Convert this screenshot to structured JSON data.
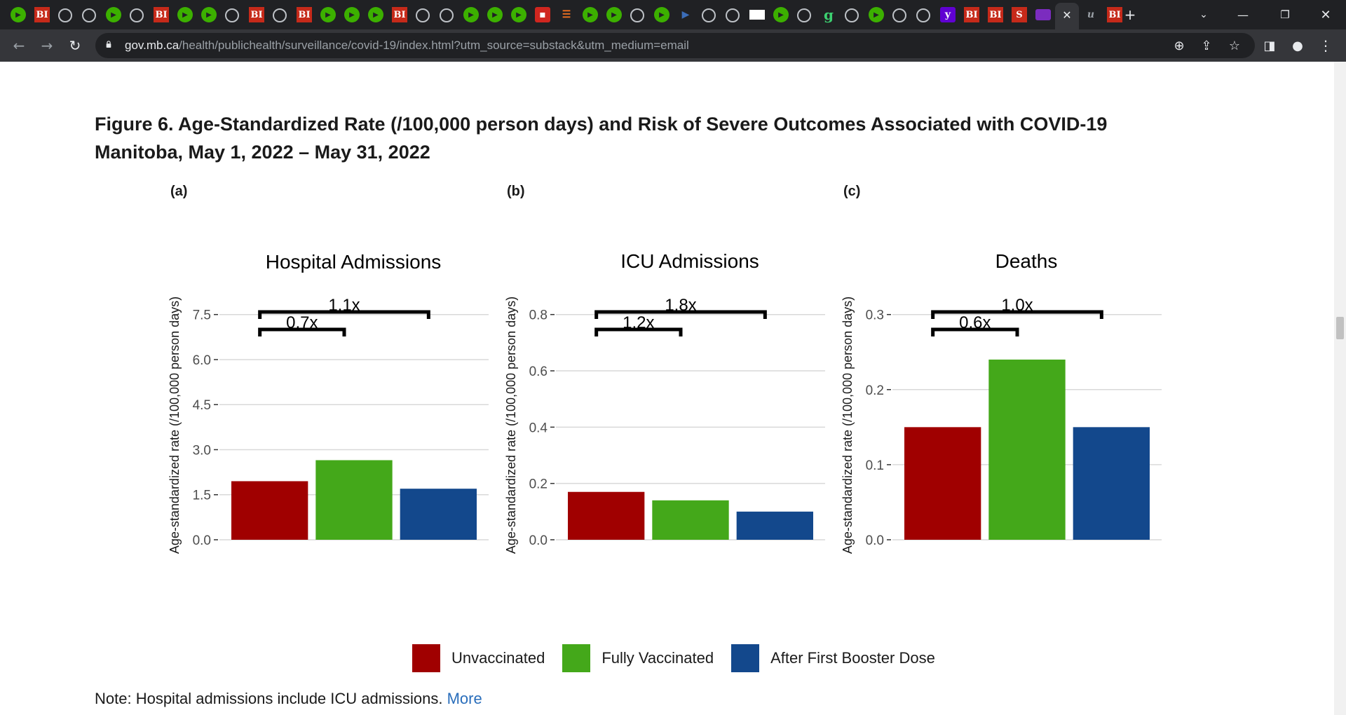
{
  "browser": {
    "url_host": "gov.mb.ca",
    "url_path": "/health/publichealth/surveillance/covid-19/index.html?utm_source=substack&utm_medium=email",
    "tab_icons": [
      "play-icon",
      "bi-icon",
      "globe-icon",
      "globe-icon",
      "play-icon",
      "globe-icon",
      "bi-icon",
      "play-icon",
      "play-icon",
      "globe-icon",
      "bi-icon",
      "globe-icon",
      "bi-icon",
      "play-icon",
      "play-icon",
      "play-icon",
      "bi-icon",
      "globe-icon",
      "globe-icon",
      "play-icon",
      "play-icon",
      "play-icon",
      "news-icon",
      "bookmark-icon",
      "play-icon",
      "play-icon",
      "globe-icon",
      "play-icon",
      "video-icon",
      "globe-icon",
      "globe-icon",
      "wv-icon",
      "play-icon",
      "globe-icon",
      "g-icon",
      "globe-icon",
      "play-icon",
      "globe-icon",
      "globe-icon",
      "yahoo-icon",
      "bi-icon",
      "bi-icon",
      "s-icon",
      "mail-icon",
      "active-tab",
      "ub-icon",
      "bi-icon"
    ],
    "bi_text": "BI",
    "s_text": "S",
    "g_text": "g"
  },
  "figure": {
    "title": "Figure 6. Age-Standardized Rate (/100,000 person days) and Risk of Severe Outcomes Associated with COVID-19 Manitoba, May 1, 2022 – May 31, 2022",
    "note_text": "Note: Hospital admissions include ICU admissions.",
    "note_link": "More"
  },
  "legend": [
    {
      "label": "Unvaccinated",
      "color": "#a00000"
    },
    {
      "label": "Fully Vaccinated",
      "color": "#44a81a"
    },
    {
      "label": "After First Booster Dose",
      "color": "#13488c"
    }
  ],
  "chart_data": [
    {
      "type": "bar",
      "panel": "(a)",
      "title": "Hospital Admissions",
      "ylabel": "Age-standardized rate (/100,000 person days)",
      "categories": [
        "Unvaccinated",
        "Fully Vaccinated",
        "After First Booster Dose"
      ],
      "values": [
        1.95,
        2.65,
        1.7
      ],
      "colors": [
        "#a00000",
        "#44a81a",
        "#13488c"
      ],
      "yticks": [
        "0.0",
        "1.5",
        "3.0",
        "4.5",
        "6.0",
        "7.5"
      ],
      "ylim": [
        0,
        7.5
      ],
      "grid": true,
      "brackets": [
        {
          "label": "1.1x",
          "from": 0,
          "to": 2
        },
        {
          "label": "0.7x",
          "from": 0,
          "to": 1
        }
      ]
    },
    {
      "type": "bar",
      "panel": "(b)",
      "title": "ICU Admissions",
      "ylabel": "Age-standardized rate (/100,000 person days)",
      "categories": [
        "Unvaccinated",
        "Fully Vaccinated",
        "After First Booster Dose"
      ],
      "values": [
        0.17,
        0.14,
        0.1
      ],
      "colors": [
        "#a00000",
        "#44a81a",
        "#13488c"
      ],
      "yticks": [
        "0.0",
        "0.2",
        "0.4",
        "0.6",
        "0.8"
      ],
      "ylim": [
        0,
        0.8
      ],
      "grid": true,
      "brackets": [
        {
          "label": "1.8x",
          "from": 0,
          "to": 2
        },
        {
          "label": "1.2x",
          "from": 0,
          "to": 1
        }
      ]
    },
    {
      "type": "bar",
      "panel": "(c)",
      "title": "Deaths",
      "ylabel": "Age-standardized rate (/100,000 person days)",
      "categories": [
        "Unvaccinated",
        "Fully Vaccinated",
        "After First Booster Dose"
      ],
      "values": [
        0.15,
        0.24,
        0.15
      ],
      "colors": [
        "#a00000",
        "#44a81a",
        "#13488c"
      ],
      "yticks": [
        "0.0",
        "0.1",
        "0.2",
        "0.3"
      ],
      "ylim": [
        0,
        0.3
      ],
      "grid": true,
      "brackets": [
        {
          "label": "1.0x",
          "from": 0,
          "to": 2
        },
        {
          "label": "0.6x",
          "from": 0,
          "to": 1
        }
      ]
    }
  ]
}
